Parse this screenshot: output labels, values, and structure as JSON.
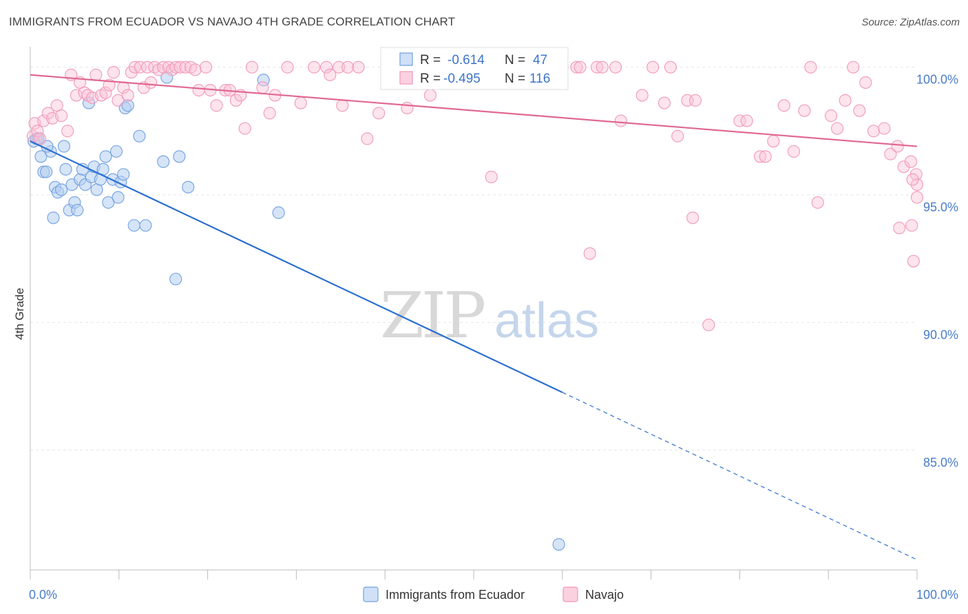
{
  "title": "IMMIGRANTS FROM ECUADOR VS NAVAJO 4TH GRADE CORRELATION CHART",
  "source": "Source: ZipAtlas.com",
  "watermark": {
    "zip": "ZIP",
    "atlas": "atlas"
  },
  "chart_data": {
    "type": "scatter",
    "ylabel": "4th Grade",
    "xlim": [
      0,
      100
    ],
    "ylim": [
      80.3,
      100.8
    ],
    "x_tick_labels": {
      "left": "0.0%",
      "right": "100.0%"
    },
    "y_ticks": [
      {
        "value": 100,
        "label": "100.0%"
      },
      {
        "value": 95,
        "label": "95.0%"
      },
      {
        "value": 90,
        "label": "90.0%"
      },
      {
        "value": 85,
        "label": "85.0%"
      }
    ],
    "grid": true,
    "legend_position": "top-center",
    "series": [
      {
        "name": "Immigrants from Ecuador",
        "color": "#6fa0e0",
        "line_color": "#2b6fd0",
        "R": "-0.614",
        "N": "47",
        "R_label": "R = ",
        "N_label": "N = ",
        "trend": {
          "x0": 0,
          "y0": 97.1,
          "x1": 100,
          "y1": 80.7,
          "solid_until": 60
        },
        "points": [
          [
            0.4,
            97.1
          ],
          [
            0.7,
            97.2
          ],
          [
            1.2,
            96.5
          ],
          [
            1.5,
            95.9
          ],
          [
            1.8,
            95.9
          ],
          [
            2.3,
            96.7
          ],
          [
            2.6,
            94.1
          ],
          [
            2.8,
            95.3
          ],
          [
            3.1,
            95.1
          ],
          [
            3.5,
            95.2
          ],
          [
            3.8,
            96.9
          ],
          [
            4.0,
            96.0
          ],
          [
            4.4,
            94.4
          ],
          [
            4.7,
            95.4
          ],
          [
            5.0,
            94.7
          ],
          [
            5.3,
            94.4
          ],
          [
            5.6,
            95.6
          ],
          [
            5.9,
            96.0
          ],
          [
            6.2,
            95.4
          ],
          [
            6.6,
            98.6
          ],
          [
            6.9,
            95.7
          ],
          [
            7.2,
            96.1
          ],
          [
            7.5,
            95.2
          ],
          [
            7.9,
            95.6
          ],
          [
            8.2,
            96.0
          ],
          [
            8.5,
            96.5
          ],
          [
            8.8,
            94.7
          ],
          [
            9.3,
            95.6
          ],
          [
            9.7,
            96.7
          ],
          [
            9.9,
            94.9
          ],
          [
            10.2,
            95.5
          ],
          [
            10.5,
            95.8
          ],
          [
            10.7,
            98.4
          ],
          [
            11.0,
            98.5
          ],
          [
            11.7,
            93.8
          ],
          [
            12.3,
            97.3
          ],
          [
            13.0,
            93.8
          ],
          [
            15.0,
            96.3
          ],
          [
            15.4,
            99.6
          ],
          [
            16.4,
            91.7
          ],
          [
            16.8,
            96.5
          ],
          [
            17.8,
            95.3
          ],
          [
            26.3,
            99.5
          ],
          [
            28.0,
            94.3
          ],
          [
            59.6,
            81.3
          ],
          [
            0.9,
            97.2
          ],
          [
            1.9,
            96.9
          ]
        ]
      },
      {
        "name": "Navajo",
        "color": "#f098b8",
        "line_color": "#e06890",
        "R": "-0.495",
        "N": "116",
        "R_label": "R = ",
        "N_label": "N = ",
        "trend": {
          "x0": 0,
          "y0": 99.7,
          "x1": 100,
          "y1": 96.9,
          "solid_until": 100
        },
        "points": [
          [
            0.3,
            97.3
          ],
          [
            0.5,
            97.8
          ],
          [
            0.8,
            97.5
          ],
          [
            1.1,
            97.2
          ],
          [
            1.5,
            97.9
          ],
          [
            2.0,
            98.2
          ],
          [
            2.5,
            98.0
          ],
          [
            3.0,
            98.5
          ],
          [
            3.5,
            98.1
          ],
          [
            4.2,
            97.5
          ],
          [
            4.6,
            99.7
          ],
          [
            5.2,
            98.9
          ],
          [
            5.6,
            99.4
          ],
          [
            6.1,
            99.0
          ],
          [
            6.5,
            98.9
          ],
          [
            7.0,
            98.8
          ],
          [
            7.4,
            99.7
          ],
          [
            8.0,
            98.9
          ],
          [
            8.5,
            99.0
          ],
          [
            8.9,
            99.3
          ],
          [
            9.4,
            99.8
          ],
          [
            9.9,
            98.7
          ],
          [
            10.5,
            99.2
          ],
          [
            11.0,
            98.9
          ],
          [
            11.4,
            99.8
          ],
          [
            11.8,
            100.0
          ],
          [
            12.4,
            100.0
          ],
          [
            12.8,
            99.2
          ],
          [
            13.2,
            100.0
          ],
          [
            13.6,
            99.4
          ],
          [
            14.0,
            100.0
          ],
          [
            14.5,
            99.9
          ],
          [
            15.0,
            100.0
          ],
          [
            15.6,
            100.0
          ],
          [
            16.0,
            99.9
          ],
          [
            16.4,
            100.0
          ],
          [
            16.9,
            100.0
          ],
          [
            17.5,
            100.0
          ],
          [
            18.1,
            100.0
          ],
          [
            18.6,
            99.9
          ],
          [
            19.0,
            99.1
          ],
          [
            19.8,
            100.0
          ],
          [
            20.3,
            99.1
          ],
          [
            21.0,
            98.5
          ],
          [
            22.0,
            99.1
          ],
          [
            22.5,
            99.1
          ],
          [
            23.2,
            98.7
          ],
          [
            23.7,
            98.9
          ],
          [
            24.2,
            97.6
          ],
          [
            25.0,
            100.0
          ],
          [
            26.2,
            99.2
          ],
          [
            27.0,
            98.2
          ],
          [
            27.6,
            98.9
          ],
          [
            29.0,
            100.0
          ],
          [
            30.5,
            98.6
          ],
          [
            32.0,
            100.0
          ],
          [
            33.4,
            100.0
          ],
          [
            33.8,
            99.7
          ],
          [
            34.8,
            100.0
          ],
          [
            35.2,
            98.5
          ],
          [
            35.8,
            100.0
          ],
          [
            37.0,
            100.0
          ],
          [
            38.0,
            97.2
          ],
          [
            39.3,
            98.2
          ],
          [
            41.0,
            100.0
          ],
          [
            42.5,
            98.4
          ],
          [
            44.0,
            100.0
          ],
          [
            45.1,
            98.9
          ],
          [
            50.0,
            100.0
          ],
          [
            52.0,
            95.7
          ],
          [
            53.1,
            100.0
          ],
          [
            56.0,
            99.4
          ],
          [
            57.8,
            100.0
          ],
          [
            58.5,
            100.0
          ],
          [
            60.0,
            100.0
          ],
          [
            61.6,
            100.0
          ],
          [
            62.0,
            100.0
          ],
          [
            63.1,
            92.7
          ],
          [
            63.9,
            100.0
          ],
          [
            64.5,
            100.0
          ],
          [
            66.0,
            100.0
          ],
          [
            66.6,
            97.9
          ],
          [
            69.0,
            98.9
          ],
          [
            70.2,
            100.0
          ],
          [
            71.5,
            98.6
          ],
          [
            72.2,
            100.0
          ],
          [
            73.0,
            97.3
          ],
          [
            74.1,
            98.7
          ],
          [
            74.7,
            94.1
          ],
          [
            75.0,
            98.7
          ],
          [
            76.5,
            89.9
          ],
          [
            80.0,
            97.9
          ],
          [
            80.8,
            97.9
          ],
          [
            82.3,
            96.5
          ],
          [
            82.9,
            96.5
          ],
          [
            83.8,
            97.1
          ],
          [
            85.0,
            98.5
          ],
          [
            86.1,
            96.7
          ],
          [
            87.3,
            98.3
          ],
          [
            88.0,
            100.0
          ],
          [
            88.8,
            94.7
          ],
          [
            90.3,
            98.1
          ],
          [
            91.0,
            97.6
          ],
          [
            91.9,
            98.7
          ],
          [
            92.8,
            100.0
          ],
          [
            93.5,
            98.3
          ],
          [
            94.2,
            99.4
          ],
          [
            95.1,
            97.5
          ],
          [
            96.3,
            97.6
          ],
          [
            97.0,
            96.6
          ],
          [
            97.8,
            96.9
          ],
          [
            98.5,
            96.1
          ],
          [
            99.3,
            96.3
          ],
          [
            99.4,
            93.8
          ],
          [
            99.6,
            92.4
          ],
          [
            99.9,
            95.8
          ],
          [
            100.0,
            94.9
          ],
          [
            100.0,
            95.4
          ],
          [
            99.5,
            95.6
          ],
          [
            98.0,
            93.7
          ]
        ]
      }
    ]
  }
}
